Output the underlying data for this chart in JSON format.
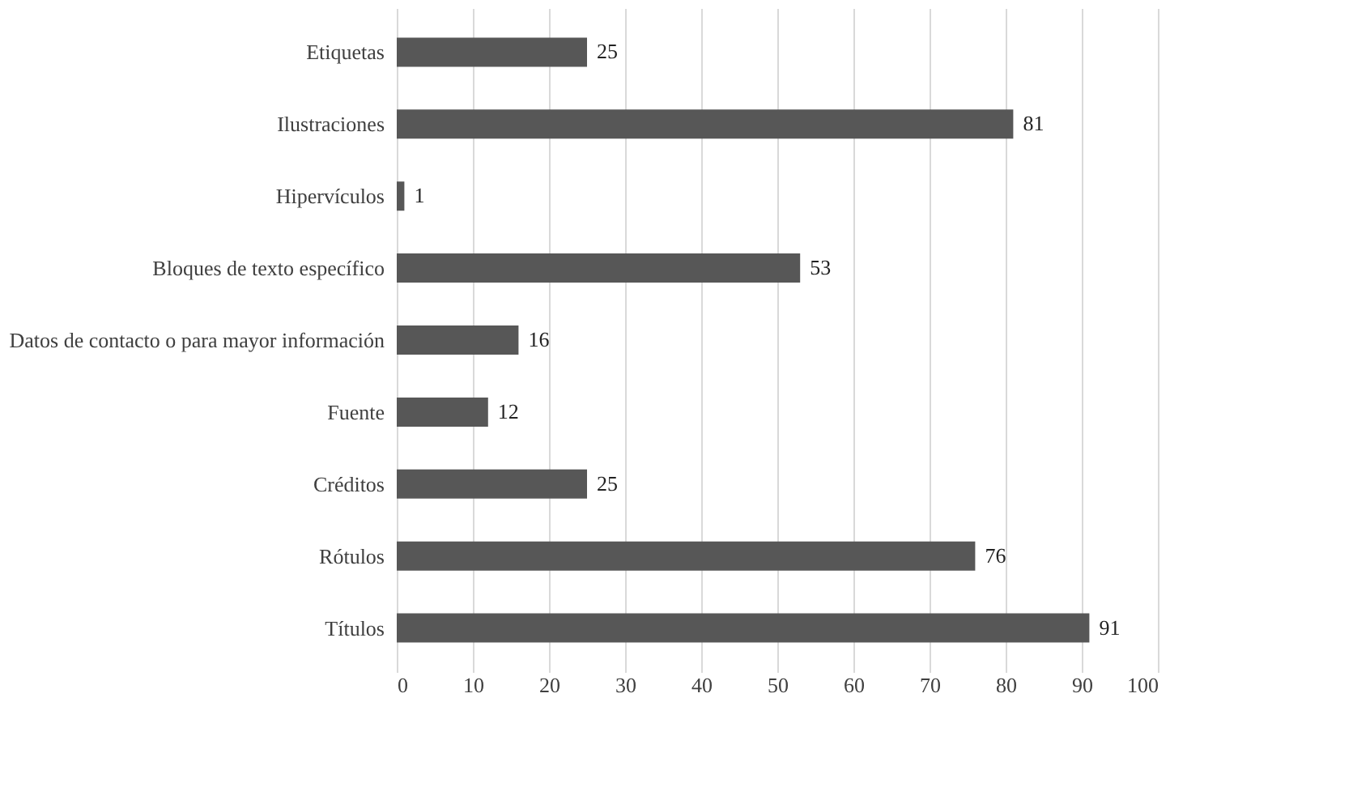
{
  "chart_data": {
    "type": "bar",
    "orientation": "horizontal",
    "categories": [
      "Etiquetas",
      "Ilustraciones",
      "Hipervículos",
      "Bloques de texto específico",
      "Datos de contacto o para mayor información",
      "Fuente",
      "Créditos",
      "Rótulos",
      "Títulos"
    ],
    "values": [
      25,
      81,
      1,
      53,
      16,
      12,
      25,
      76,
      91
    ],
    "color": "#575757",
    "xlim": [
      0,
      100
    ],
    "xticks": [
      0,
      10,
      20,
      30,
      40,
      50,
      60,
      70,
      80,
      90,
      100
    ],
    "grid": "x",
    "data_labels": true
  }
}
